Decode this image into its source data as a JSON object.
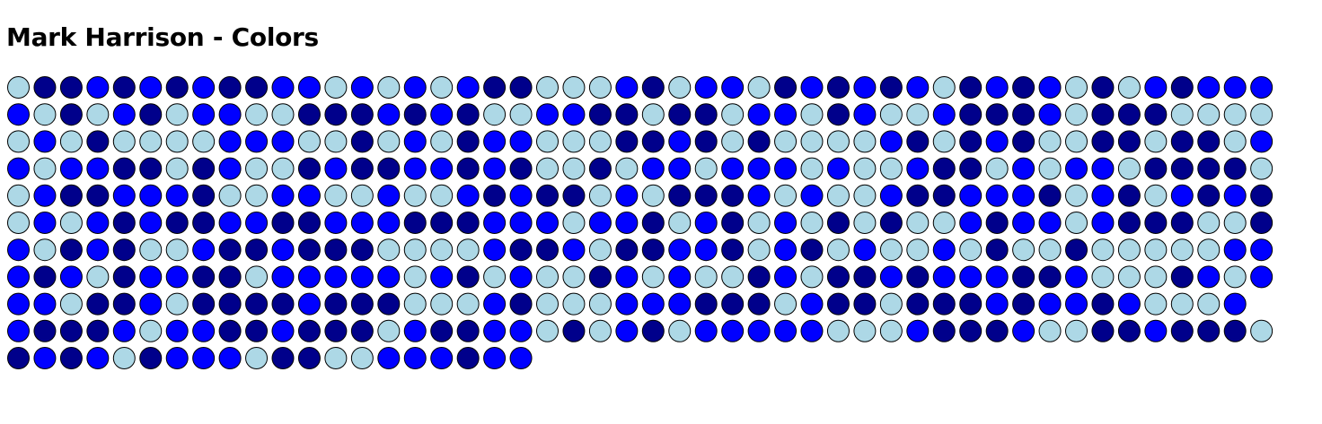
{
  "page": {
    "title": "Mark Harrison - Colors"
  },
  "palette": {
    "L": "#add8e6",
    "B": "#0000ff",
    "N": "#00008b",
    "stroke": "#000000"
  },
  "grid": {
    "rows": [
      "LNNBNBNBNNBBLBLBLBNNLLLBNLBBLNBNBNBLNBNBLNLBNBBB",
      "BLNLBNLBBLLNNNBNBNLLBBNNLNNLBBLNBLLBNNNBLNNNLLLL",
      "LBLNLLLLBBBLLNLBLNBBLLLNNBNLNLLLLBNLNBNLLNNLNNLB",
      "BLBBNNLNBLLNBNNBBNBNLLNLBBLBBBLBLLBNNLBLBBLNNNNL",
      "LBNNBBBNLLBBLLBLLBNBNNLBLNNNBLBLLBNNBBBNLBNLBNBN",
      "LBLBNBNNBBNNBBBNNNBBBLBBNLBNLBLNLNLLBNBBLBNNNLLN",
      "BLNBNLLBNNBNNNLLLLBNNBLNNBBNLBNLBLLBLNLLNLLLLLBB",
      "BNBLNBBNNLBBBBBLBNLBLLNBLBLLNBLNNBNBBBNNBLLLNBLB",
      "BBLNNBLNNNNBNNNLLLBNLLLBBBNNNLBNNLNNNBNBBNBLLLB",
      "BNNNBLBBNNBNNNLBNNBBLNLBNLBBBBBLLLBNNNBLLNNBNNNL",
      "NBNBLNBBBLNNLLBBBNBB"
    ]
  }
}
